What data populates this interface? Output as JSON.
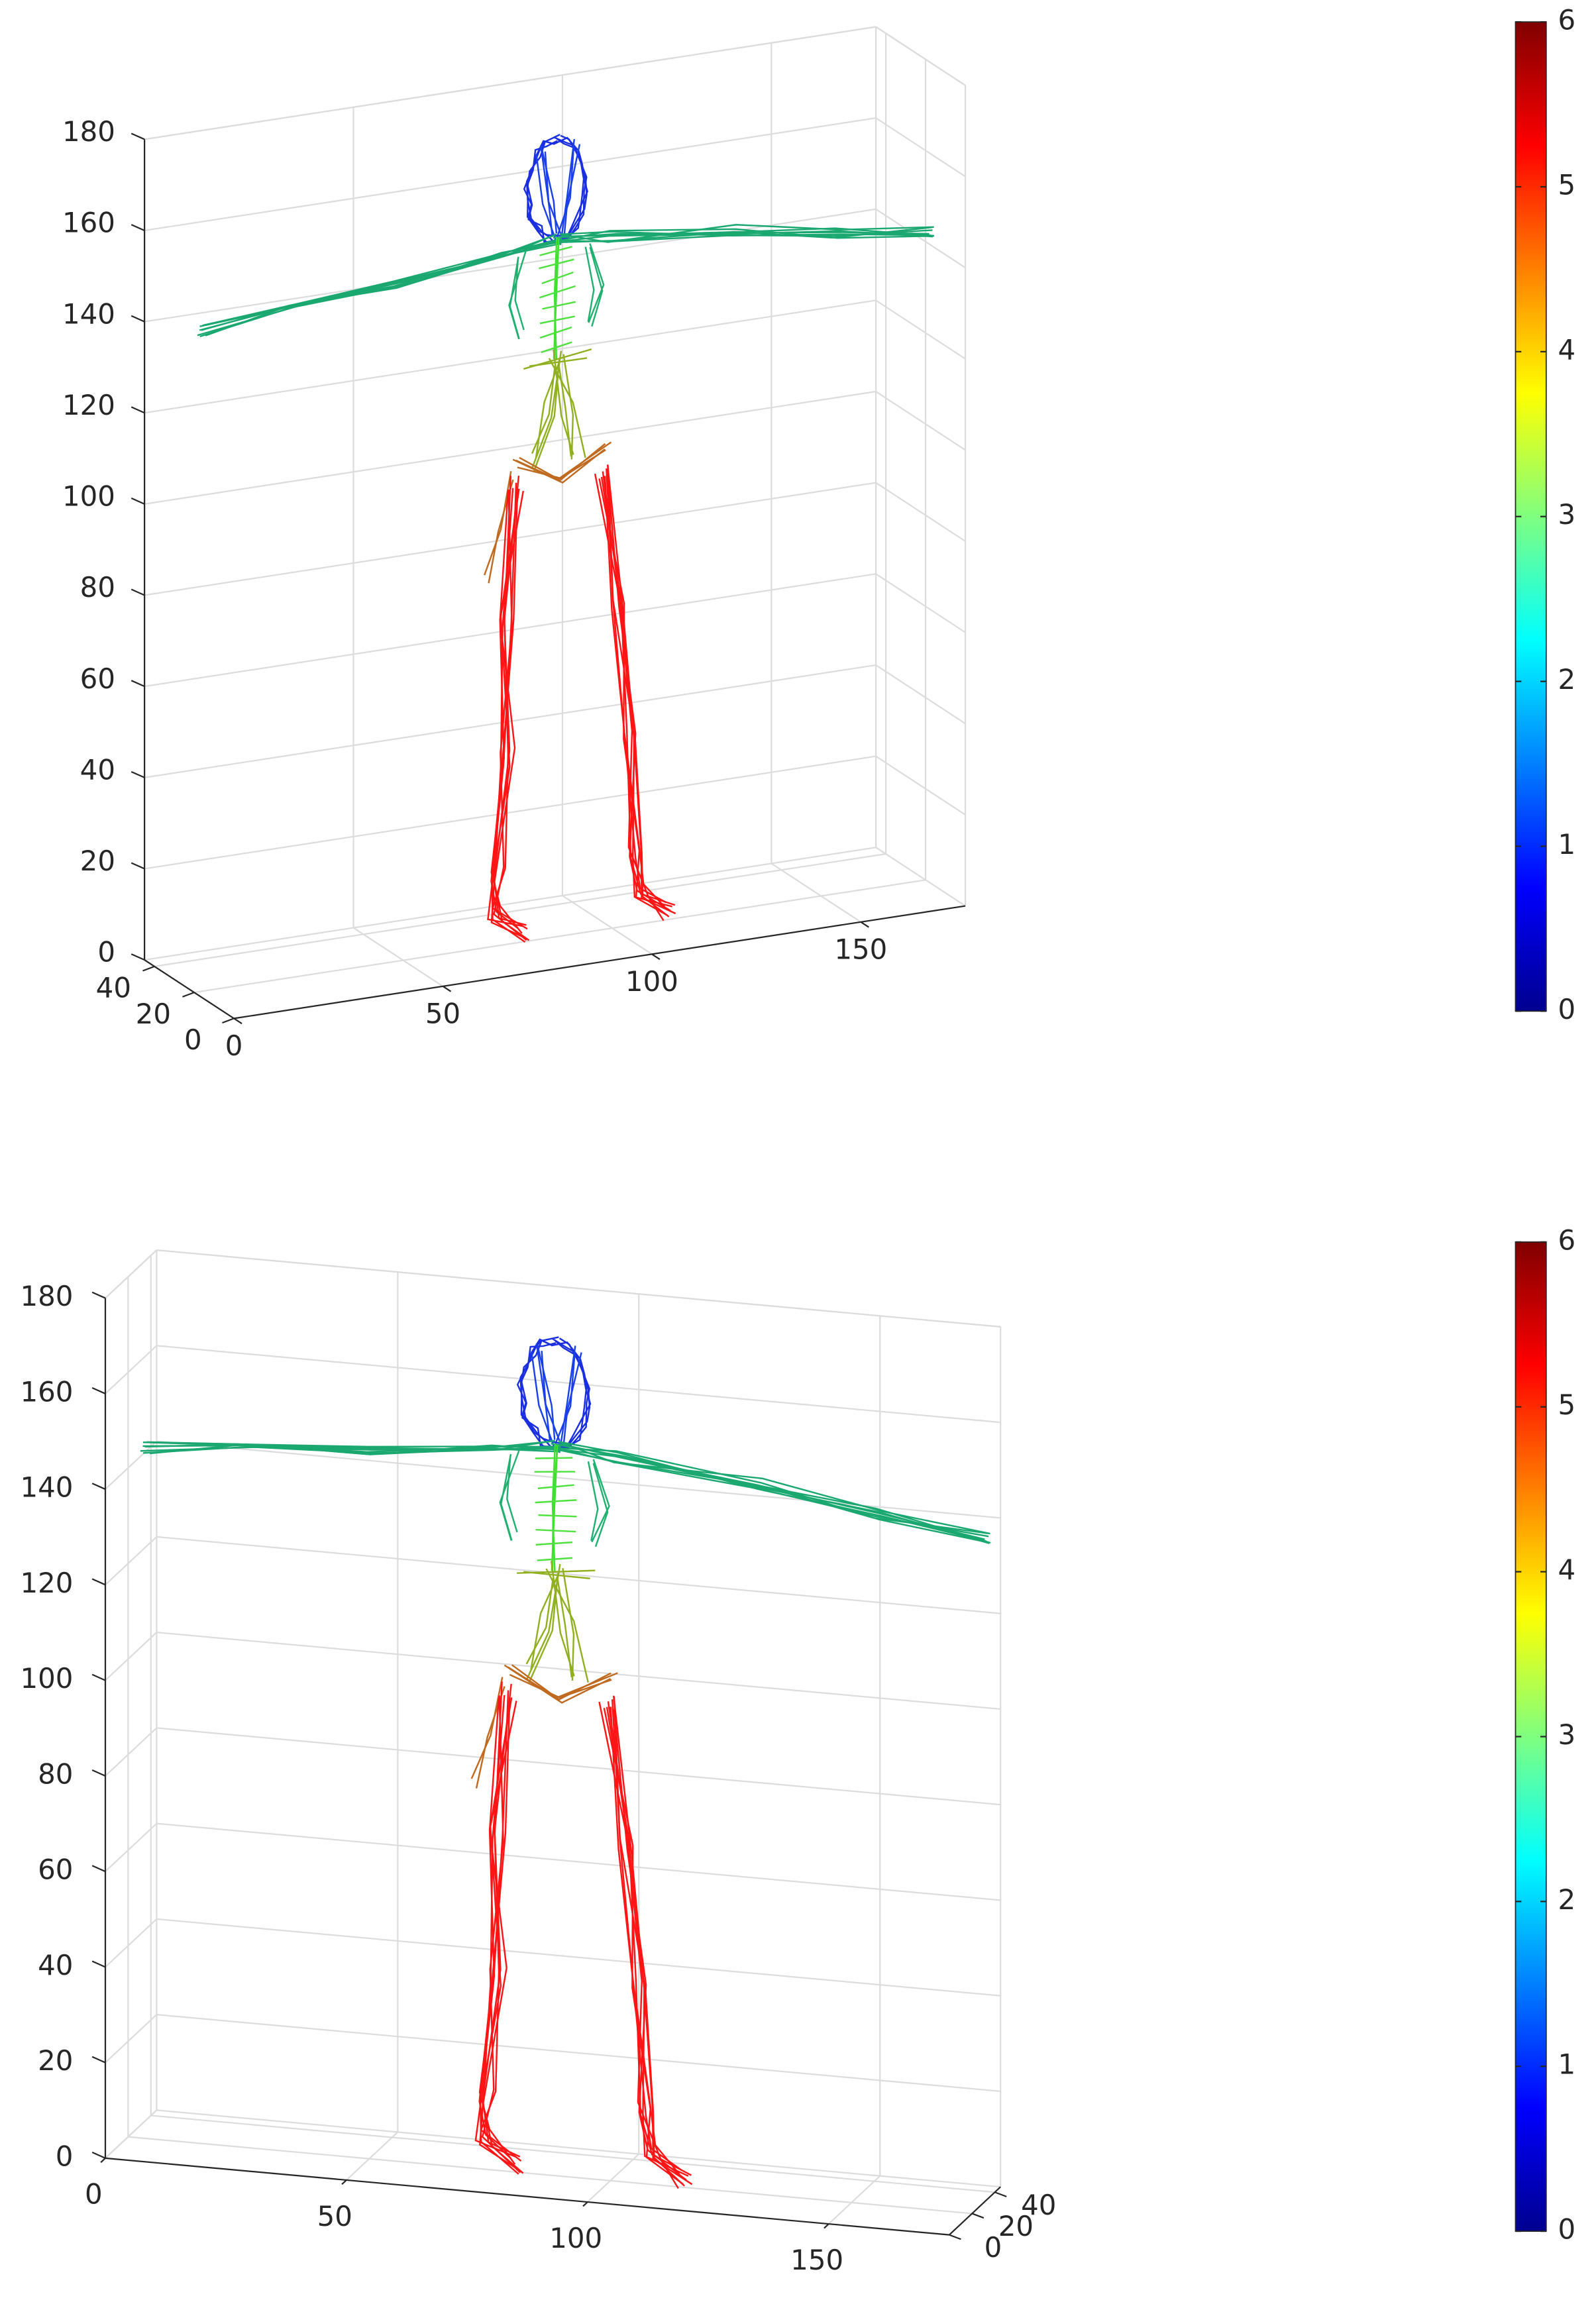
{
  "chart_data": [
    {
      "type": "line3d",
      "xlim": [
        0,
        175
      ],
      "ylim": [
        0,
        45
      ],
      "zlim": [
        0,
        180
      ],
      "xticks": [
        0,
        50,
        100,
        150
      ],
      "yticks": [
        0,
        20,
        40
      ],
      "zticks": [
        0,
        20,
        40,
        60,
        80,
        100,
        120,
        140,
        160,
        180
      ],
      "grid": true,
      "colorbar": {
        "colormap": "jet",
        "clim": [
          0,
          6
        ],
        "ticks": [
          0,
          1,
          2,
          3,
          4,
          5,
          6
        ]
      }
    },
    {
      "type": "line3d",
      "xlim": [
        0,
        175
      ],
      "ylim": [
        0,
        45
      ],
      "zlim": [
        0,
        180
      ],
      "xticks": [
        0,
        50,
        100,
        150
      ],
      "yticks": [
        0,
        20,
        40
      ],
      "zticks": [
        0,
        20,
        40,
        60,
        80,
        100,
        120,
        140,
        160,
        180
      ],
      "grid": true,
      "colorbar": {
        "colormap": "jet",
        "clim": [
          0,
          6
        ],
        "ticks": [
          0,
          1,
          2,
          3,
          4,
          5,
          6
        ]
      }
    }
  ]
}
